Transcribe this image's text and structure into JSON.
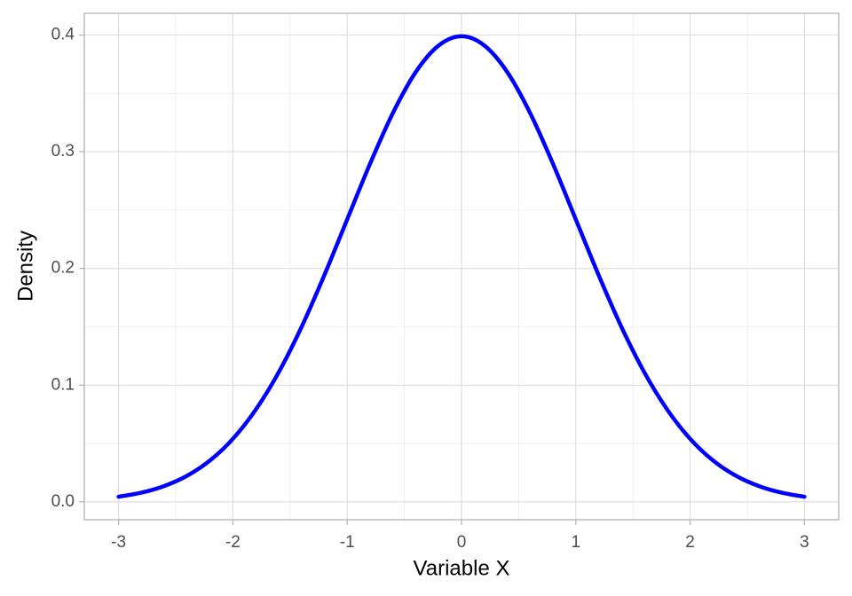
{
  "chart_data": {
    "type": "line",
    "x_label": "Variable X",
    "y_label": "Density",
    "x": [
      -3,
      -2.8,
      -2.6,
      -2.4,
      -2.2,
      -2,
      -1.8,
      -1.6,
      -1.4,
      -1.2,
      -1,
      -0.8,
      -0.6,
      -0.4,
      -0.2,
      0,
      0.2,
      0.4,
      0.6,
      0.8,
      1,
      1.2,
      1.4,
      1.6,
      1.8,
      2,
      2.2,
      2.4,
      2.6,
      2.8,
      3
    ],
    "series": [
      {
        "color": "#0000ff",
        "values": [
          0.0044,
          0.0079,
          0.0136,
          0.0224,
          0.0355,
          0.054,
          0.079,
          0.1109,
          0.1497,
          0.1942,
          0.242,
          0.2897,
          0.3332,
          0.3683,
          0.391,
          0.3989,
          0.391,
          0.3683,
          0.3332,
          0.2897,
          0.242,
          0.1942,
          0.1497,
          0.1109,
          0.079,
          0.054,
          0.0355,
          0.0224,
          0.0136,
          0.0079,
          0.0044
        ]
      }
    ],
    "xlim": [
      -3.3,
      3.3
    ],
    "ylim": [
      -0.0153,
      0.4186
    ],
    "xticks": [
      -3,
      -2,
      -1,
      0,
      1,
      2,
      3
    ],
    "yticks": [
      {
        "value": 0,
        "label": "0.0"
      },
      0.1,
      0.2,
      0.3,
      0.4
    ],
    "grid": true
  }
}
